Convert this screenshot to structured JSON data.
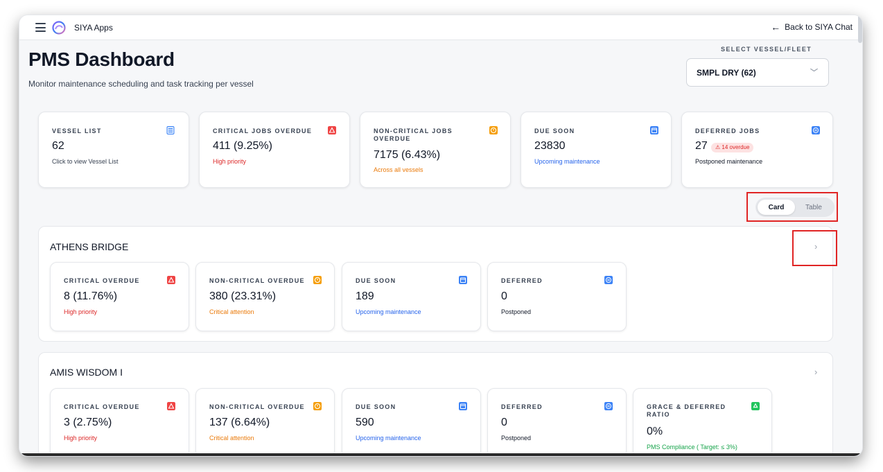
{
  "app": {
    "title": "SIYA Apps",
    "back_label": "Back to SIYA Chat"
  },
  "page": {
    "title": "PMS Dashboard",
    "subtitle": "Monitor maintenance scheduling and task tracking per vessel"
  },
  "vessel_select": {
    "label": "SELECT VESSEL/FLEET",
    "value": "SMPL DRY (62)"
  },
  "summary": {
    "vessel_list": {
      "label": "VESSEL LIST",
      "value": "62",
      "note": "Click to view Vessel List"
    },
    "critical": {
      "label": "CRITICAL JOBS OVERDUE",
      "value": "411 (9.25%)",
      "note": "High priority"
    },
    "noncritical": {
      "label_line1": "NON-CRITICAL JOBS",
      "label_line2": "OVERDUE",
      "value": "7175 (6.43%)",
      "note": "Across all vessels"
    },
    "due_soon": {
      "label": "DUE SOON",
      "value": "23830",
      "note": "Upcoming maintenance"
    },
    "deferred": {
      "label": "DEFERRED JOBS",
      "value": "27",
      "badge": "⚠ 14 overdue",
      "note": "Postponed maintenance"
    }
  },
  "view_toggle": {
    "card": "Card",
    "table": "Table"
  },
  "vessels": [
    {
      "name": "ATHENS BRIDGE",
      "critical": {
        "label": "CRITICAL OVERDUE",
        "value": "8 (11.76%)",
        "note": "High priority"
      },
      "noncritical": {
        "label": "NON-CRITICAL OVERDUE",
        "value": "380 (23.31%)",
        "note": "Critical attention"
      },
      "due_soon": {
        "label": "DUE SOON",
        "value": "189",
        "note": "Upcoming maintenance"
      },
      "deferred": {
        "label": "DEFERRED",
        "value": "0",
        "note": "Postponed"
      }
    },
    {
      "name": "AMIS WISDOM I",
      "critical": {
        "label": "CRITICAL OVERDUE",
        "value": "3 (2.75%)",
        "note": "High priority"
      },
      "noncritical": {
        "label": "NON-CRITICAL OVERDUE",
        "value": "137 (6.64%)",
        "note": "Critical attention"
      },
      "due_soon": {
        "label": "DUE SOON",
        "value": "590",
        "note": "Upcoming maintenance"
      },
      "deferred": {
        "label": "DEFERRED",
        "value": "0",
        "note": "Postponed"
      },
      "grace": {
        "label_line1": "GRACE & DEFERRED",
        "label_line2": "RATIO",
        "value": "0%",
        "note": "PMS Compliance ( Target: ≤ 3%)"
      }
    }
  ],
  "colors": {
    "critical": "#dc2626",
    "noncritical": "#ea7a0a",
    "due_soon": "#2563eb",
    "compliance": "#16a34a",
    "highlight": "#e02424"
  },
  "icons": {
    "vessel_list": "list-icon",
    "critical": "warning-triangle-icon",
    "noncritical": "alert-circle-icon",
    "due_soon": "calendar-icon",
    "deferred": "pause-icon",
    "grace": "recycle-icon"
  }
}
